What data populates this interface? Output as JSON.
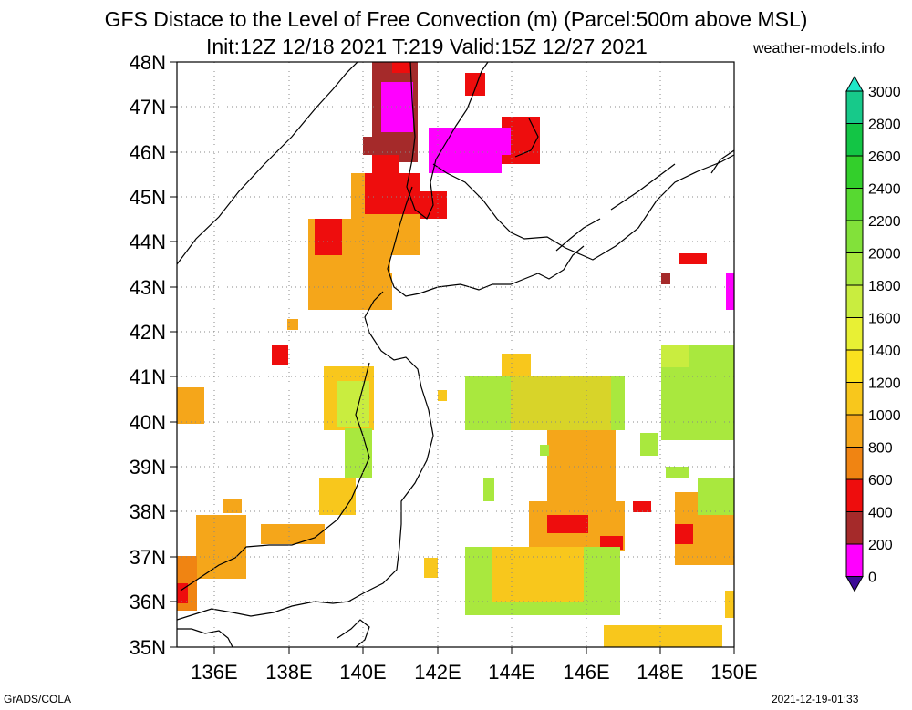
{
  "title": {
    "line1": "GFS Distace to the Level of Free Convection (m) (Parcel:500m above MSL)",
    "line2": "Init:12Z 12/18 2021 T:219 Valid:15Z 12/27 2021"
  },
  "site": "weather-models.info",
  "footer": {
    "left": "GrADS/COLA",
    "right": "2021-12-19-01:33"
  },
  "map": {
    "lat_labels": [
      "48N",
      "47N",
      "46N",
      "45N",
      "44N",
      "43N",
      "42N",
      "41N",
      "40N",
      "39N",
      "38N",
      "37N",
      "36N",
      "35N"
    ],
    "lon_labels": [
      "136E",
      "138E",
      "140E",
      "142E",
      "144E",
      "146E",
      "148E",
      "150E"
    ],
    "lat_range": [
      35,
      48
    ],
    "lon_range": [
      135,
      150
    ],
    "grid": "dotted"
  },
  "colorbar": {
    "labels": [
      "3000",
      "2800",
      "2600",
      "2400",
      "2200",
      "2000",
      "1800",
      "1600",
      "1400",
      "1200",
      "1000",
      "800",
      "600",
      "400",
      "200",
      "0"
    ],
    "colors": [
      "#1fe6c8",
      "#17c98a",
      "#13c545",
      "#33cf2b",
      "#57d931",
      "#82e13a",
      "#a9e83e",
      "#c9ed3f",
      "#e8f034",
      "#fae11f",
      "#f8c71c",
      "#f5a61a",
      "#f08412",
      "#ee0d0d",
      "#a52a2a",
      "#ff00ff",
      "#3c0a96"
    ]
  }
}
